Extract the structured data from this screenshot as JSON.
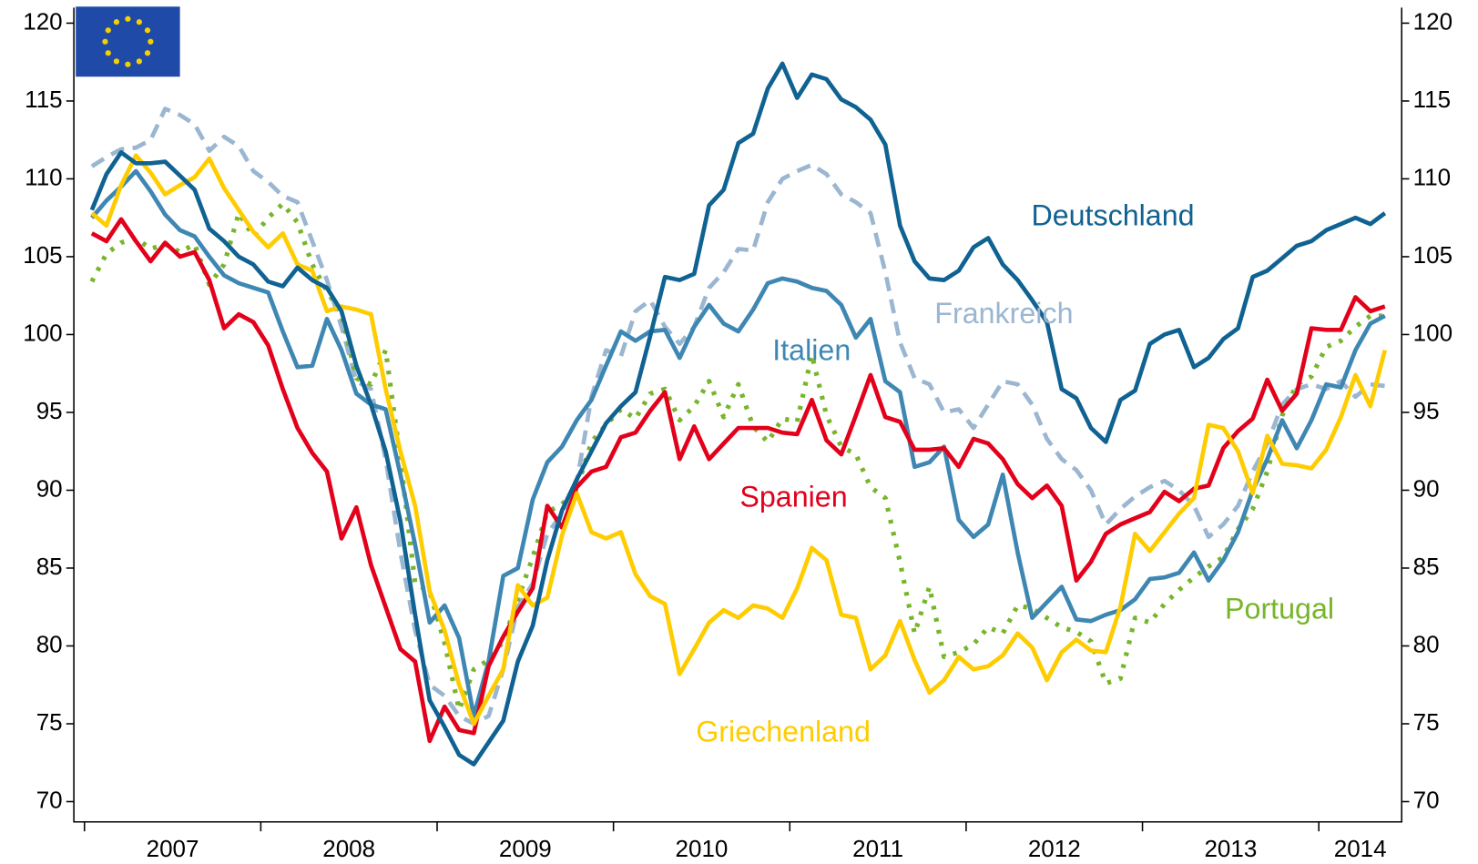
{
  "chart_data": {
    "type": "line",
    "x": [
      2007.042,
      2007.125,
      2007.208,
      2007.292,
      2007.375,
      2007.458,
      2007.542,
      2007.625,
      2007.708,
      2007.792,
      2007.875,
      2007.958,
      2008.042,
      2008.125,
      2008.208,
      2008.292,
      2008.375,
      2008.458,
      2008.542,
      2008.625,
      2008.708,
      2008.792,
      2008.875,
      2008.958,
      2009.042,
      2009.125,
      2009.208,
      2009.292,
      2009.375,
      2009.458,
      2009.542,
      2009.625,
      2009.708,
      2009.792,
      2009.875,
      2009.958,
      2010.042,
      2010.125,
      2010.208,
      2010.292,
      2010.375,
      2010.458,
      2010.542,
      2010.625,
      2010.708,
      2010.792,
      2010.875,
      2010.958,
      2011.042,
      2011.125,
      2011.208,
      2011.292,
      2011.375,
      2011.458,
      2011.542,
      2011.625,
      2011.708,
      2011.792,
      2011.875,
      2011.958,
      2012.042,
      2012.125,
      2012.208,
      2012.292,
      2012.375,
      2012.458,
      2012.542,
      2012.625,
      2012.708,
      2012.792,
      2012.875,
      2012.958,
      2013.042,
      2013.125,
      2013.208,
      2013.292,
      2013.375,
      2013.458,
      2013.542,
      2013.625,
      2013.708,
      2013.792,
      2013.875,
      2013.958,
      2014.042,
      2014.125,
      2014.208,
      2014.292,
      2014.375
    ],
    "xlim": [
      2006.94,
      2014.47
    ],
    "xticks": [
      2007,
      2008,
      2009,
      2010,
      2011,
      2012,
      2013,
      2014
    ],
    "ylim": [
      68.7,
      121
    ],
    "yticks": [
      70,
      75,
      80,
      85,
      90,
      95,
      100,
      105,
      110,
      115,
      120
    ],
    "grid": false,
    "series": [
      {
        "name": "Frankreich",
        "color": "#9ab6d1",
        "style": "dashed",
        "values": [
          110.8,
          111.4,
          111.9,
          112,
          112.5,
          114.5,
          114.1,
          113.5,
          111.8,
          112.7,
          112.1,
          110.5,
          109.8,
          108.9,
          108.5,
          106,
          103.5,
          100.5,
          97,
          96.5,
          92,
          86,
          81,
          77.5,
          76.8,
          75.5,
          75,
          75.5,
          78.5,
          82.5,
          84,
          87.2,
          88.5,
          90.5,
          96,
          99,
          98.6,
          101.5,
          102.2,
          100.5,
          99.4,
          100.5,
          103,
          104,
          105.5,
          105.4,
          108.5,
          110,
          110.5,
          110.9,
          110.3,
          109,
          108.5,
          107.8,
          104,
          99.5,
          97.2,
          96.8,
          95,
          95.2,
          94,
          95.5,
          97,
          96.8,
          95.5,
          93.3,
          92,
          91.3,
          90,
          87.8,
          88.8,
          89.6,
          90.2,
          90.6,
          90,
          89,
          87,
          87.8,
          89,
          91.2,
          93,
          95.5,
          96.5,
          96.8,
          96.5,
          97,
          96,
          96.8,
          96.7
        ]
      },
      {
        "name": "Portugal",
        "color": "#77b52a",
        "style": "dotted",
        "values": [
          103.4,
          105.2,
          105.9,
          106.2,
          105.5,
          105.8,
          105.3,
          105.8,
          103.2,
          104.5,
          107.8,
          106.3,
          107.5,
          108.4,
          107.2,
          104.5,
          102.8,
          101.3,
          97.2,
          96.8,
          99,
          92,
          84,
          83.5,
          80.2,
          75.9,
          78.5,
          79.1,
          80.3,
          83,
          85.7,
          88.6,
          89.1,
          90.1,
          93.1,
          94.2,
          95.2,
          94.6,
          96.2,
          96.5,
          94.5,
          95.4,
          97,
          94.7,
          96.8,
          94.1,
          93.1,
          94.6,
          94.4,
          98.7,
          94.8,
          92.8,
          92.3,
          90.2,
          89.5,
          85.4,
          80.8,
          83.8,
          79.3,
          79.6,
          80.1,
          81.2,
          80.8,
          82.6,
          82.4,
          81.8,
          81.2,
          80.9,
          80.3,
          77.6,
          77.9,
          81.8,
          81.5,
          82.7,
          83.6,
          84.4,
          85.1,
          85.7,
          87.5,
          88.8,
          91.2,
          94.8,
          96.8,
          97.3,
          99.2,
          99.6,
          100.5,
          101.2,
          101.2
        ]
      },
      {
        "name": "Italien",
        "color": "#3f87b3",
        "style": "solid",
        "values": [
          107.5,
          108.6,
          109.5,
          110.5,
          109.2,
          107.7,
          106.7,
          106.3,
          105,
          103.8,
          103.3,
          103,
          102.7,
          100.2,
          97.9,
          98,
          101,
          99,
          96.2,
          95.5,
          95.2,
          91,
          86.5,
          81.5,
          82.6,
          80.5,
          75.5,
          79,
          84.5,
          85,
          89.4,
          91.8,
          92.8,
          94.5,
          95.8,
          98,
          100.2,
          99.6,
          100.2,
          100.3,
          98.5,
          100.5,
          101.9,
          100.7,
          100.2,
          101.6,
          103.3,
          103.6,
          103.4,
          103,
          102.8,
          101.9,
          99.8,
          101,
          97,
          96.3,
          91.5,
          91.8,
          92.8,
          88.1,
          87,
          87.8,
          91,
          86,
          81.8,
          82.8,
          83.8,
          81.7,
          81.6,
          82,
          82.3,
          83,
          84.3,
          84.4,
          84.7,
          86,
          84.2,
          85.5,
          87.3,
          90,
          92,
          94.5,
          92.7,
          94.5,
          96.8,
          96.6,
          99,
          100.7,
          101.2
        ]
      },
      {
        "name": "Spanien",
        "color": "#e3001b",
        "style": "solid",
        "values": [
          106.5,
          106,
          107.4,
          106,
          104.7,
          105.9,
          105,
          105.3,
          103.5,
          100.4,
          101.3,
          100.8,
          99.3,
          96.5,
          94,
          92.4,
          91.2,
          86.9,
          88.9,
          85.2,
          82.5,
          79.8,
          79,
          73.9,
          76.1,
          74.6,
          74.4,
          78.7,
          80.6,
          82.2,
          83.7,
          89,
          87.6,
          90.2,
          91.2,
          91.5,
          93.4,
          93.7,
          95.1,
          96.3,
          92,
          94.1,
          92,
          93,
          94,
          94,
          94,
          93.7,
          93.6,
          95.8,
          93.2,
          92.3,
          94.8,
          97.4,
          94.7,
          94.4,
          92.6,
          92.6,
          92.7,
          91.5,
          93.3,
          93,
          92,
          90.4,
          89.5,
          90.3,
          89,
          84.2,
          85.4,
          87.2,
          87.8,
          88.2,
          88.6,
          89.9,
          89.3,
          90.1,
          90.3,
          92.7,
          93.8,
          94.6,
          97.1,
          95.1,
          96.2,
          100.4,
          100.3,
          100.3,
          102.4,
          101.5,
          101.8
        ]
      },
      {
        "name": "Griechenland",
        "color": "#ffcc00",
        "style": "solid",
        "values": [
          107.8,
          107,
          109.6,
          111.5,
          110.4,
          109,
          109.6,
          110.1,
          111.3,
          109.4,
          108,
          106.6,
          105.6,
          106.5,
          104.5,
          104.1,
          101.5,
          101.8,
          101.6,
          101.3,
          96.5,
          92.5,
          89,
          83.5,
          81,
          77.5,
          75,
          76.8,
          78.5,
          83.9,
          82.6,
          83.1,
          87.1,
          89.8,
          87.3,
          86.9,
          87.3,
          84.6,
          83.2,
          82.7,
          78.2,
          79.8,
          81.5,
          82.3,
          81.8,
          82.6,
          82.4,
          81.8,
          83.7,
          86.3,
          85.5,
          82,
          81.8,
          78.5,
          79.4,
          81.6,
          79.1,
          77,
          77.8,
          79.3,
          78.5,
          78.7,
          79.4,
          80.8,
          79.9,
          77.8,
          79.6,
          80.4,
          79.7,
          79.6,
          82.5,
          87.2,
          86.1,
          87.3,
          88.5,
          89.5,
          94.2,
          94,
          92.5,
          89.8,
          93.5,
          91.7,
          91.6,
          91.4,
          92.6,
          94.7,
          97.4,
          95.4,
          99
        ]
      },
      {
        "name": "Deutschland",
        "color": "#0f6291",
        "style": "solid",
        "values": [
          108,
          110.3,
          111.7,
          111,
          111,
          111.1,
          110.2,
          109.3,
          106.8,
          106,
          105,
          104.5,
          103.4,
          103.1,
          104.3,
          103.5,
          103,
          101.5,
          98,
          95.5,
          92.5,
          88,
          82,
          76.5,
          74.8,
          73,
          72.4,
          73.8,
          75.2,
          79,
          81.3,
          85.5,
          88.7,
          90.7,
          92.5,
          94.3,
          95.4,
          96.3,
          99.9,
          103.7,
          103.5,
          103.9,
          108.3,
          109.3,
          112.3,
          112.9,
          115.8,
          117.4,
          115.2,
          116.7,
          116.4,
          115.1,
          114.6,
          113.8,
          112.2,
          107,
          104.7,
          103.6,
          103.5,
          104.1,
          105.6,
          106.2,
          104.5,
          103.5,
          102.2,
          100.8,
          96.5,
          95.9,
          94,
          93.1,
          95.8,
          96.4,
          99.4,
          100,
          100.3,
          97.9,
          98.5,
          99.7,
          100.4,
          103.7,
          104.1,
          104.9,
          105.7,
          106,
          106.7,
          107.1,
          107.5,
          107.1,
          107.8
        ]
      }
    ]
  }
}
